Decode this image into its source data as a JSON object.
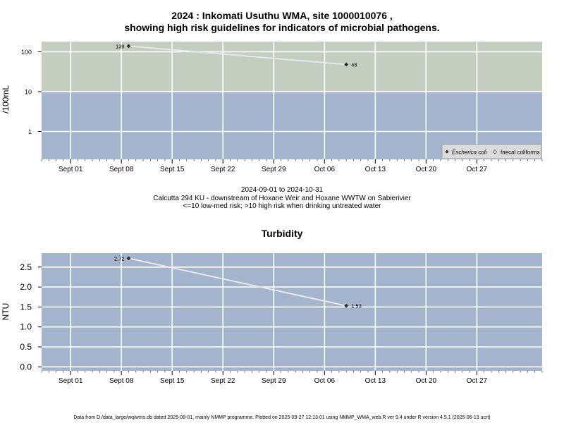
{
  "title_line1": "2024 : Inkomati Usuthu WMA, site 1000010076 ,",
  "title_line2": "showing high risk guidelines for indicators of microbial pathogens.",
  "caption": {
    "date_range": "2024-09-01 to 2024-10-31",
    "site_desc": "Calcutta 294 KU - downstream of Hoxane Weir and Hoxane WWTW on Sabierivier",
    "risk_note": "<=10 low-med risk; >10 high risk when drinking untreated water"
  },
  "footer": "Data from D:/data_large/wq/wms.db dated 2025-08-01, mainly NMMP programme. Plotted on 2025-09-27 12:13:01 using NMMP_WMA_web.R ver 9.4 under R version 4.5.1 (2025-06-13 ucrt)",
  "colors": {
    "high_risk_band": "#c4cdc0",
    "low_risk_band": "#a3b4cc",
    "gridline": "#ffffff",
    "line": "#e6e8ec",
    "point": "#333333"
  },
  "chart_data": [
    {
      "type": "line",
      "title": "",
      "xlabel": "",
      "ylabel": "/100mL",
      "y_scale": "log",
      "ylim": [
        0.2,
        180
      ],
      "xlim": [
        "2024-08-28",
        "2024-11-05"
      ],
      "x_ticks": [
        "2024-09-01",
        "2024-09-08",
        "2024-09-15",
        "2024-09-22",
        "2024-09-29",
        "2024-10-06",
        "2024-10-13",
        "2024-10-20",
        "2024-10-27"
      ],
      "x_tick_labels": [
        "Sept 01",
        "Sept 08",
        "Sept 15",
        "Sept 22",
        "Sept 29",
        "Oct 06",
        "Oct 13",
        "Oct 20",
        "Oct 27"
      ],
      "y_ticks": [
        1,
        10,
        100
      ],
      "y_tick_labels": [
        "1",
        "10",
        "100"
      ],
      "threshold": 10,
      "legend_placement": "bottom-right",
      "grid": true,
      "series": [
        {
          "name": "Escherica coli",
          "marker": "filled-diamond",
          "x": [
            "2024-09-09",
            "2024-10-09"
          ],
          "y": [
            139,
            48
          ],
          "labels": [
            "139",
            "48"
          ]
        },
        {
          "name": "faecal coliforms",
          "marker": "open-diamond",
          "x": [],
          "y": [],
          "labels": []
        }
      ]
    },
    {
      "type": "line",
      "title": "Turbidity",
      "xlabel": "",
      "ylabel": "NTU",
      "y_scale": "linear",
      "ylim": [
        -0.1,
        2.85
      ],
      "xlim": [
        "2024-08-28",
        "2024-11-05"
      ],
      "x_ticks": [
        "2024-09-01",
        "2024-09-08",
        "2024-09-15",
        "2024-09-22",
        "2024-09-29",
        "2024-10-06",
        "2024-10-13",
        "2024-10-20",
        "2024-10-27"
      ],
      "x_tick_labels": [
        "Sept 01",
        "Sept 08",
        "Sept 15",
        "Sept 22",
        "Sept 29",
        "Oct 06",
        "Oct 13",
        "Oct 20",
        "Oct 27"
      ],
      "y_ticks": [
        0,
        0.5,
        1,
        1.5,
        2,
        2.5
      ],
      "y_tick_labels": [
        "0.0",
        "0.5",
        "1.0",
        "1.5",
        "2.0",
        "2.5"
      ],
      "grid": true,
      "series": [
        {
          "name": "",
          "marker": "filled-diamond",
          "x": [
            "2024-09-09",
            "2024-10-09"
          ],
          "y": [
            2.72,
            1.53
          ],
          "labels": [
            "2.72",
            "1.53"
          ]
        }
      ]
    }
  ]
}
